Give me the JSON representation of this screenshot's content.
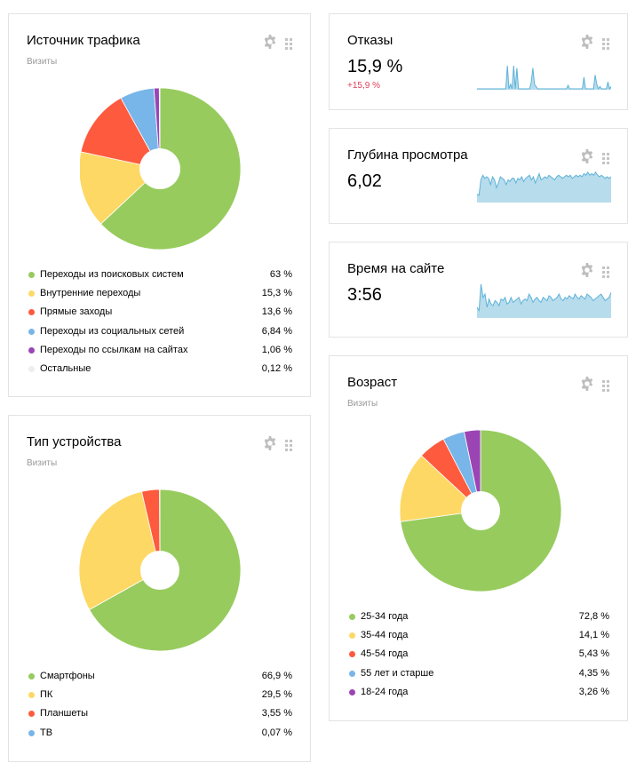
{
  "traffic": {
    "title": "Источник трафика",
    "subtitle": "Визиты",
    "chart_data": {
      "type": "pie",
      "categories": [
        "Переходы из поисковых систем",
        "Внутренние переходы",
        "Прямые заходы",
        "Переходы из социальных сетей",
        "Переходы по ссылкам на сайтах",
        "Остальные"
      ],
      "values": [
        63,
        15.3,
        13.6,
        6.84,
        1.06,
        0.12
      ],
      "colors": [
        "#97cb5e",
        "#fdd865",
        "#fe5a3e",
        "#78b5e8",
        "#9b45b5",
        "#eeeeee"
      ]
    },
    "legend": [
      {
        "label": "Переходы из поисковых систем",
        "value": "63 %",
        "color": "#97cb5e"
      },
      {
        "label": "Внутренние переходы",
        "value": "15,3 %",
        "color": "#fdd865"
      },
      {
        "label": "Прямые заходы",
        "value": "13,6 %",
        "color": "#fe5a3e"
      },
      {
        "label": "Переходы из социальных сетей",
        "value": "6,84 %",
        "color": "#78b5e8"
      },
      {
        "label": "Переходы по ссылкам на сайтах",
        "value": "1,06 %",
        "color": "#9b45b5"
      },
      {
        "label": "Остальные",
        "value": "0,12 %",
        "color": "#eeeeee"
      }
    ]
  },
  "device": {
    "title": "Тип устройства",
    "subtitle": "Визиты",
    "chart_data": {
      "type": "pie",
      "categories": [
        "Смартфоны",
        "ПК",
        "Планшеты",
        "ТВ"
      ],
      "values": [
        66.9,
        29.5,
        3.55,
        0.07
      ],
      "colors": [
        "#97cb5e",
        "#fdd865",
        "#fe5a3e",
        "#78b5e8"
      ]
    },
    "legend": [
      {
        "label": "Смартфоны",
        "value": "66,9 %",
        "color": "#97cb5e"
      },
      {
        "label": "ПК",
        "value": "29,5 %",
        "color": "#fdd865"
      },
      {
        "label": "Планшеты",
        "value": "3,55 %",
        "color": "#fe5a3e"
      },
      {
        "label": "ТВ",
        "value": "0,07 %",
        "color": "#78b5e8"
      }
    ]
  },
  "bounce": {
    "title": "Отказы",
    "value": "15,9 %",
    "delta": "+15,9 %",
    "spark": [
      0,
      0,
      0,
      0,
      0,
      0,
      0,
      0,
      0,
      0,
      0,
      0,
      0,
      0,
      0,
      0,
      0,
      0,
      0,
      1,
      0,
      0.2,
      0,
      1,
      0,
      0.9,
      0,
      0,
      0,
      0,
      0,
      0,
      0,
      0,
      0.3,
      0.9,
      0.2,
      0.1,
      0,
      0,
      0,
      0,
      0,
      0,
      0,
      0,
      0,
      0,
      0,
      0,
      0,
      0,
      0,
      0,
      0,
      0,
      0,
      0.15,
      0,
      0,
      0,
      0,
      0,
      0,
      0,
      0,
      0,
      0.5,
      0,
      0,
      0,
      0,
      0,
      0,
      0.6,
      0.2,
      0,
      0.1,
      0,
      0,
      0,
      0,
      0.3,
      0,
      0.1
    ]
  },
  "depth": {
    "title": "Глубина просмотра",
    "value": "6,02",
    "spark": [
      0.25,
      0.2,
      0.7,
      0.85,
      0.75,
      0.8,
      0.75,
      0.55,
      0.8,
      0.7,
      0.45,
      0.6,
      0.8,
      0.75,
      0.7,
      0.55,
      0.7,
      0.65,
      0.75,
      0.75,
      0.6,
      0.75,
      0.7,
      0.8,
      0.65,
      0.75,
      0.8,
      0.85,
      0.7,
      0.8,
      0.6,
      0.75,
      0.9,
      0.7,
      0.75,
      0.8,
      0.75,
      0.85,
      0.8,
      0.75,
      0.7,
      0.8,
      0.85,
      0.8,
      0.75,
      0.8,
      0.85,
      0.8,
      0.85,
      0.75,
      0.8,
      0.85,
      0.8,
      0.85,
      0.8,
      0.9,
      0.85,
      0.95,
      0.85,
      0.9,
      0.85,
      0.95,
      0.85,
      0.8,
      0.85,
      0.8,
      0.75,
      0.8,
      0.75,
      0.8
    ]
  },
  "time": {
    "title": "Время на сайте",
    "value": "3:56",
    "spark": [
      0.3,
      0.2,
      1,
      0.6,
      0.7,
      0.3,
      0.55,
      0.4,
      0.35,
      0.5,
      0.45,
      0.35,
      0.55,
      0.5,
      0.6,
      0.4,
      0.45,
      0.6,
      0.45,
      0.5,
      0.55,
      0.6,
      0.4,
      0.5,
      0.55,
      0.5,
      0.7,
      0.6,
      0.45,
      0.55,
      0.6,
      0.5,
      0.45,
      0.6,
      0.55,
      0.5,
      0.65,
      0.6,
      0.5,
      0.55,
      0.6,
      0.7,
      0.55,
      0.5,
      0.6,
      0.55,
      0.65,
      0.6,
      0.55,
      0.7,
      0.6,
      0.55,
      0.65,
      0.6,
      0.55,
      0.7,
      0.65,
      0.6,
      0.5,
      0.55,
      0.6,
      0.65,
      0.7,
      0.6,
      0.5,
      0.55,
      0.6,
      0.75
    ]
  },
  "age": {
    "title": "Возраст",
    "subtitle": "Визиты",
    "chart_data": {
      "type": "pie",
      "categories": [
        "25-34 года",
        "35-44 года",
        "45-54 года",
        "55 лет и старше",
        "18-24 года"
      ],
      "values": [
        72.8,
        14.1,
        5.43,
        4.35,
        3.26
      ],
      "colors": [
        "#97cb5e",
        "#fdd865",
        "#fe5a3e",
        "#78b5e8",
        "#9b45b5"
      ]
    },
    "legend": [
      {
        "label": "25-34 года",
        "value": "72,8 %",
        "color": "#97cb5e"
      },
      {
        "label": "35-44 года",
        "value": "14,1 %",
        "color": "#fdd865"
      },
      {
        "label": "45-54 года",
        "value": "5,43 %",
        "color": "#fe5a3e"
      },
      {
        "label": "55 лет и старше",
        "value": "4,35 %",
        "color": "#78b5e8"
      },
      {
        "label": "18-24 года",
        "value": "3,26 %",
        "color": "#9b45b5"
      }
    ]
  },
  "icons": {
    "settings": "gear-icon",
    "drag": "drag-handle-icon"
  },
  "colors": {
    "spark_fill": "#b7dcec",
    "spark_line": "#5eb2d8",
    "delta": "#e0405a"
  }
}
